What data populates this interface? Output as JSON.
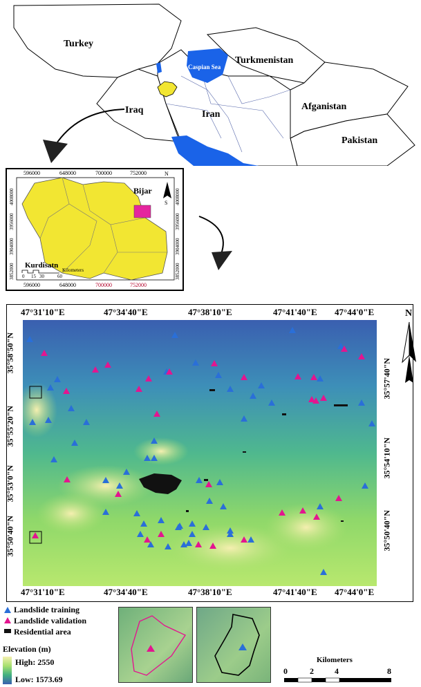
{
  "regional_map": {
    "countries": {
      "turkey": "Turkey",
      "turkmenistan": "Turkmenistan",
      "iraq": "Iraq",
      "iran": "Iran",
      "afganistan": "Afganistan",
      "pakistan": "Pakistan"
    },
    "water": {
      "caspian": "Caspian Sea",
      "persian": "Persian Gulf"
    },
    "colors": {
      "water": "#1a63e8",
      "province": "#f2e632",
      "land": "#ffffff"
    }
  },
  "inset": {
    "top_ticks": [
      "596000",
      "648000",
      "700000",
      "752000"
    ],
    "bottom_ticks": [
      "596000",
      "648000",
      "700000",
      "752000"
    ],
    "left_ticks": [
      "4008000",
      "3956000",
      "3904000",
      "3852000"
    ],
    "right_ticks": [
      "4008000",
      "3956000",
      "3904000",
      "3852000"
    ],
    "bijar_label": "Bijar",
    "kurdistan_label": "Kurdisatn",
    "scale_numbers": [
      "0",
      "15",
      "30",
      "60"
    ],
    "scale_unit": "Kilometers",
    "north_letter": "N",
    "south_letter": "S",
    "colors": {
      "province": "#f2e632",
      "study_area": "#e5269e"
    }
  },
  "study_map": {
    "top_labels": [
      "47°31'10\"E",
      "47°34'40\"E",
      "47°38'10\"E",
      "47°41'40\"E",
      "47°44'0\"E"
    ],
    "bottom_labels": [
      "47°31'10\"E",
      "47°34'40\"E",
      "47°38'10\"E",
      "47°41'40\"E",
      "47°44'0\"E"
    ],
    "left_labels": [
      "35°58'50\"N",
      "35°55'20\"N",
      "35°53'0\"N",
      "35°50'40\"N"
    ],
    "right_labels": [
      "35°57'40\"N",
      "35°54'10\"N",
      "35°50'40\"N"
    ],
    "north_letter": "N",
    "colors": {
      "training": "#2a6fd8",
      "validation": "#e3158f",
      "residential": "#111111"
    }
  },
  "legend": {
    "training": "Landslide training",
    "validation": "Landslide validation",
    "residential": "Residential area",
    "elevation_title": "Elevation (m)",
    "high": "High: 2550",
    "low": "Low: 1573.69"
  },
  "scalebar": {
    "title": "Kilometers",
    "numbers": [
      "0",
      "2",
      "4",
      "8"
    ]
  }
}
